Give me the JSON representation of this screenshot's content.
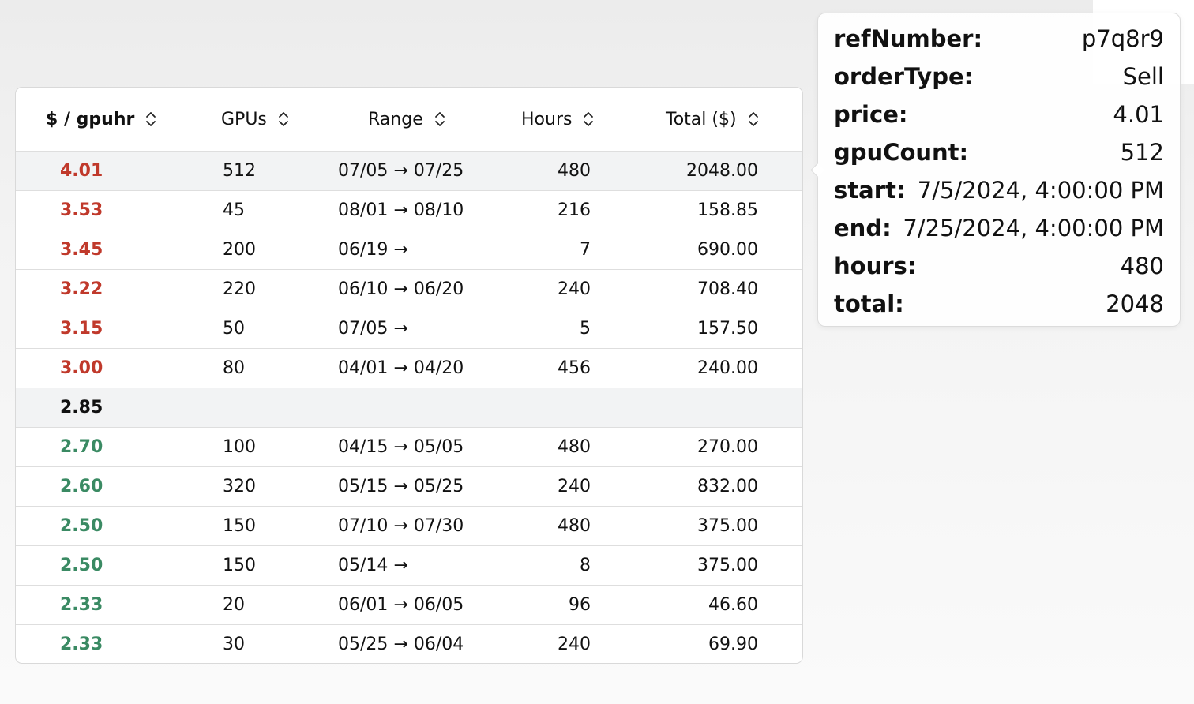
{
  "table": {
    "headers": {
      "price": "$ / gpuhr",
      "gpus": "GPUs",
      "range": "Range",
      "hours": "Hours",
      "total": "Total ($)"
    },
    "rows": [
      {
        "price": "4.01",
        "gpus": "512",
        "range": "07/05 → 07/25",
        "hours": "480",
        "total": "2048.00",
        "side": "sell"
      },
      {
        "price": "3.53",
        "gpus": "45",
        "range": "08/01 → 08/10",
        "hours": "216",
        "total": "158.85",
        "side": "sell"
      },
      {
        "price": "3.45",
        "gpus": "200",
        "range": "06/19 →",
        "hours": "7",
        "total": "690.00",
        "side": "sell"
      },
      {
        "price": "3.22",
        "gpus": "220",
        "range": "06/10 → 06/20",
        "hours": "240",
        "total": "708.40",
        "side": "sell"
      },
      {
        "price": "3.15",
        "gpus": "50",
        "range": "07/05 →",
        "hours": "5",
        "total": "157.50",
        "side": "sell"
      },
      {
        "price": "3.00",
        "gpus": "80",
        "range": "04/01 → 04/20",
        "hours": "456",
        "total": "240.00",
        "side": "sell"
      },
      {
        "price": "2.85",
        "gpus": "",
        "range": "",
        "hours": "",
        "total": "",
        "side": "mid"
      },
      {
        "price": "2.70",
        "gpus": "100",
        "range": "04/15 → 05/05",
        "hours": "480",
        "total": "270.00",
        "side": "buy"
      },
      {
        "price": "2.60",
        "gpus": "320",
        "range": "05/15 → 05/25",
        "hours": "240",
        "total": "832.00",
        "side": "buy"
      },
      {
        "price": "2.50",
        "gpus": "150",
        "range": "07/10 → 07/30",
        "hours": "480",
        "total": "375.00",
        "side": "buy"
      },
      {
        "price": "2.50",
        "gpus": "150",
        "range": "05/14 →",
        "hours": "8",
        "total": "375.00",
        "side": "buy"
      },
      {
        "price": "2.33",
        "gpus": "20",
        "range": "06/01 → 06/05",
        "hours": "96",
        "total": "46.60",
        "side": "buy"
      },
      {
        "price": "2.33",
        "gpus": "30",
        "range": "05/25 → 06/04",
        "hours": "240",
        "total": "69.90",
        "side": "buy"
      }
    ]
  },
  "tooltip": {
    "fields": [
      {
        "key": "refNumber:",
        "value": "p7q8r9"
      },
      {
        "key": "orderType:",
        "value": "Sell"
      },
      {
        "key": "price:",
        "value": "4.01"
      },
      {
        "key": "gpuCount:",
        "value": "512"
      },
      {
        "key": "start:",
        "value": "7/5/2024, 4:00:00 PM"
      },
      {
        "key": "end:",
        "value": "7/25/2024, 4:00:00 PM"
      },
      {
        "key": "hours:",
        "value": "480"
      },
      {
        "key": "total:",
        "value": "2048"
      }
    ]
  },
  "colors": {
    "sell": "#c0392b",
    "buy": "#3a8a63",
    "mid": "#111111",
    "hover_row": "#f2f3f4"
  },
  "icons": {
    "sort": "chevron-up-down-icon"
  }
}
